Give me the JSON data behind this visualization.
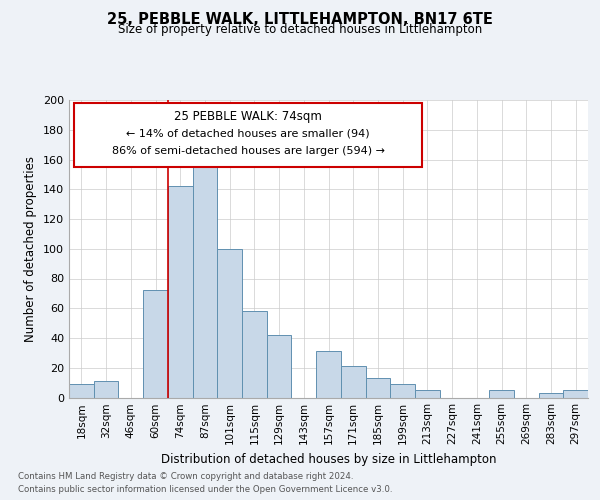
{
  "title": "25, PEBBLE WALK, LITTLEHAMPTON, BN17 6TE",
  "subtitle": "Size of property relative to detached houses in Littlehampton",
  "xlabel": "Distribution of detached houses by size in Littlehampton",
  "ylabel": "Number of detached properties",
  "footnote1": "Contains HM Land Registry data © Crown copyright and database right 2024.",
  "footnote2": "Contains public sector information licensed under the Open Government Licence v3.0.",
  "annotation_title": "25 PEBBLE WALK: 74sqm",
  "annotation_line1": "← 14% of detached houses are smaller (94)",
  "annotation_line2": "86% of semi-detached houses are larger (594) →",
  "bar_labels": [
    "18sqm",
    "32sqm",
    "46sqm",
    "60sqm",
    "74sqm",
    "87sqm",
    "101sqm",
    "115sqm",
    "129sqm",
    "143sqm",
    "157sqm",
    "171sqm",
    "185sqm",
    "199sqm",
    "213sqm",
    "227sqm",
    "241sqm",
    "255sqm",
    "269sqm",
    "283sqm",
    "297sqm"
  ],
  "bar_values": [
    9,
    11,
    0,
    72,
    142,
    167,
    100,
    58,
    42,
    0,
    31,
    21,
    13,
    9,
    5,
    0,
    0,
    5,
    0,
    3,
    5
  ],
  "property_bar_index": 4,
  "bar_color": "#c8d8e8",
  "bar_edge_color": "#6090b0",
  "marker_line_color": "#cc0000",
  "background_color": "#eef2f7",
  "plot_bg_color": "#ffffff",
  "ylim": [
    0,
    200
  ],
  "yticks": [
    0,
    20,
    40,
    60,
    80,
    100,
    120,
    140,
    160,
    180,
    200
  ],
  "annotation_box_facecolor": "#ffffff",
  "annotation_box_edgecolor": "#cc0000"
}
